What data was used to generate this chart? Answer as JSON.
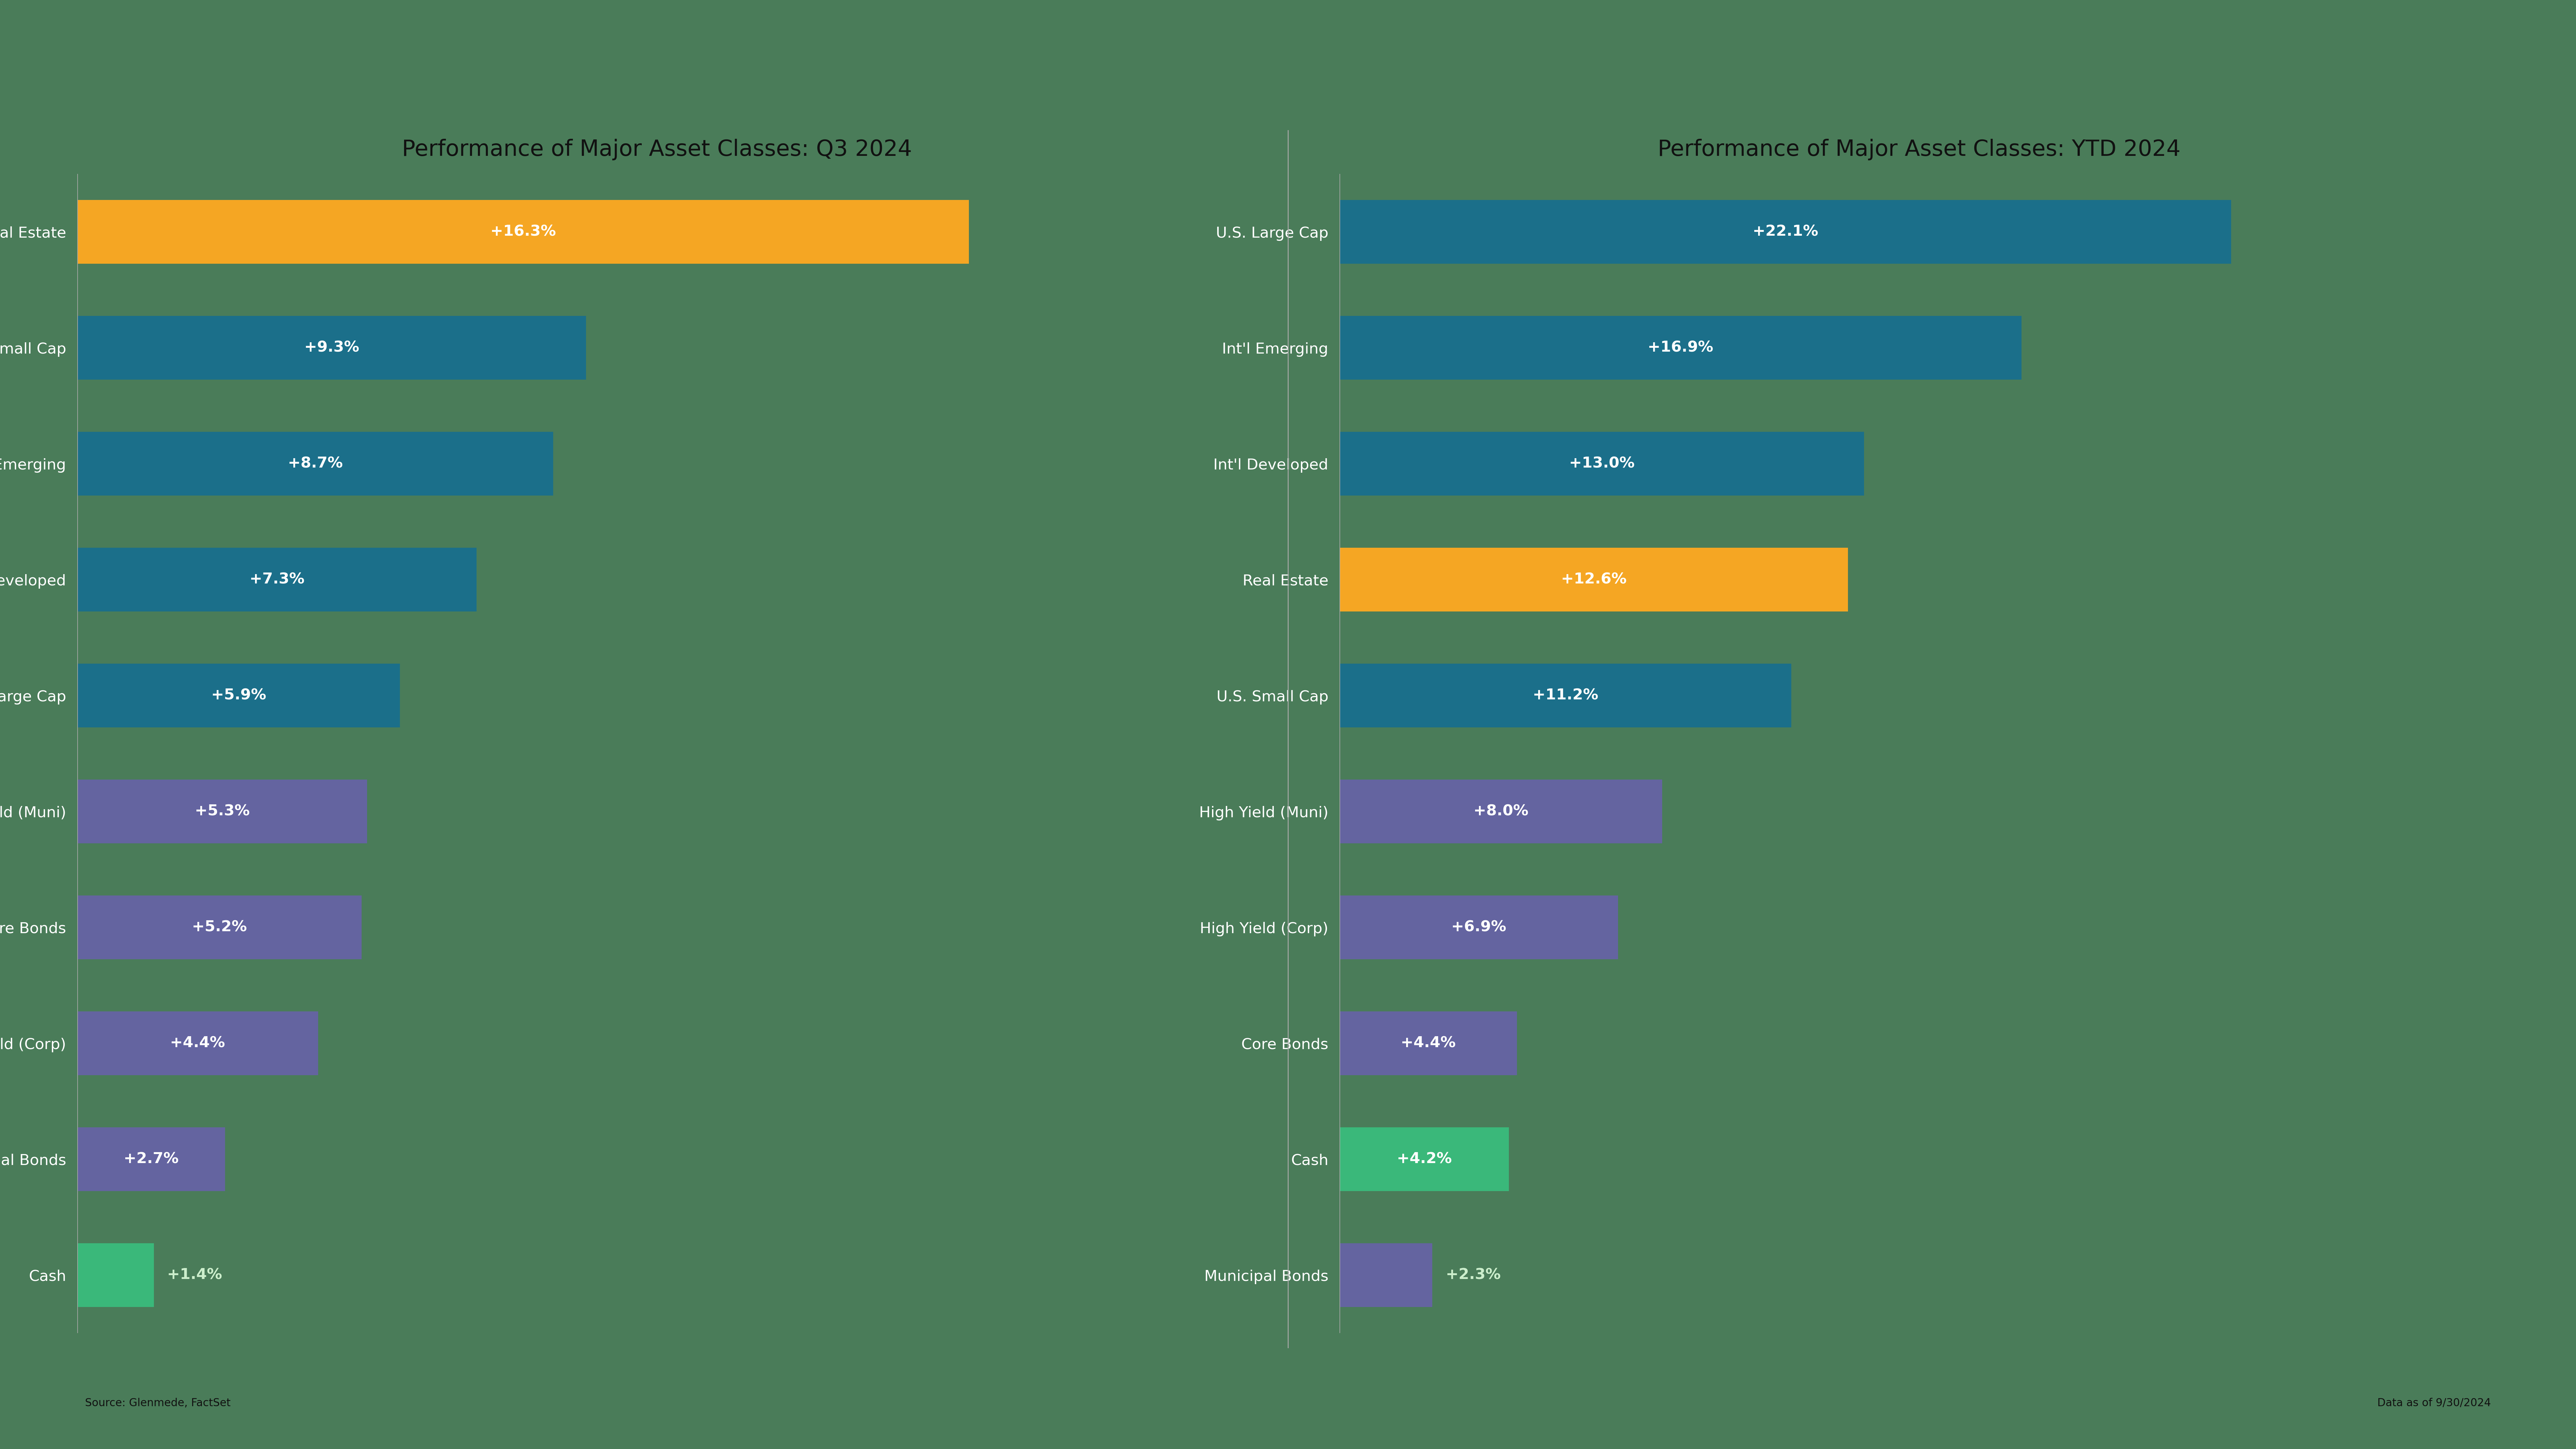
{
  "background_color": "#4a7c59",
  "title_color": "#111111",
  "q3_title": "Performance of Major Asset Classes: Q3 2024",
  "ytd_title": "Performance of Major Asset Classes: YTD 2024",
  "source_text": "Source: Glenmede, FactSet",
  "date_text": "Data as of 9/30/2024",
  "q3_categories": [
    "Real Estate",
    "U.S. Small Cap",
    "Int'l Emerging",
    "Int'l Developed",
    "U.S. Large Cap",
    "High Yield (Muni)",
    "Core Bonds",
    "High Yield (Corp)",
    "Municipal Bonds",
    "Cash"
  ],
  "q3_values": [
    16.3,
    9.3,
    8.7,
    7.3,
    5.9,
    5.3,
    5.2,
    4.4,
    2.7,
    1.4
  ],
  "q3_labels": [
    "+16.3%",
    "+9.3%",
    "+8.7%",
    "+7.3%",
    "+5.9%",
    "+5.3%",
    "+5.2%",
    "+4.4%",
    "+2.7%",
    "+1.4%"
  ],
  "q3_colors": [
    "#f5a623",
    "#1b6f8a",
    "#1b6f8a",
    "#1b6f8a",
    "#1b6f8a",
    "#6464a0",
    "#6464a0",
    "#6464a0",
    "#6464a0",
    "#3ab87a"
  ],
  "ytd_categories": [
    "U.S. Large Cap",
    "Int'l Emerging",
    "Int'l Developed",
    "Real Estate",
    "U.S. Small Cap",
    "High Yield (Muni)",
    "High Yield (Corp)",
    "Core Bonds",
    "Cash",
    "Municipal Bonds"
  ],
  "ytd_values": [
    22.1,
    16.9,
    13.0,
    12.6,
    11.2,
    8.0,
    6.9,
    4.4,
    4.2,
    2.3
  ],
  "ytd_labels": [
    "+22.1%",
    "+16.9%",
    "+13.0%",
    "+12.6%",
    "+11.2%",
    "+8.0%",
    "+6.9%",
    "+4.4%",
    "+4.2%",
    "+2.3%"
  ],
  "ytd_colors": [
    "#1b6f8a",
    "#1b6f8a",
    "#1b6f8a",
    "#f5a623",
    "#1b6f8a",
    "#6464a0",
    "#6464a0",
    "#6464a0",
    "#3ab87a",
    "#6464a0"
  ],
  "bar_height": 0.55,
  "label_fontsize": 34,
  "tick_fontsize": 34,
  "title_fontsize": 50,
  "source_fontsize": 24,
  "text_color_inside": "#ffffff",
  "text_color_outside": "#cceecc",
  "axis_line_color": "#aaaaaa",
  "separator_color": "#aaaaaa"
}
